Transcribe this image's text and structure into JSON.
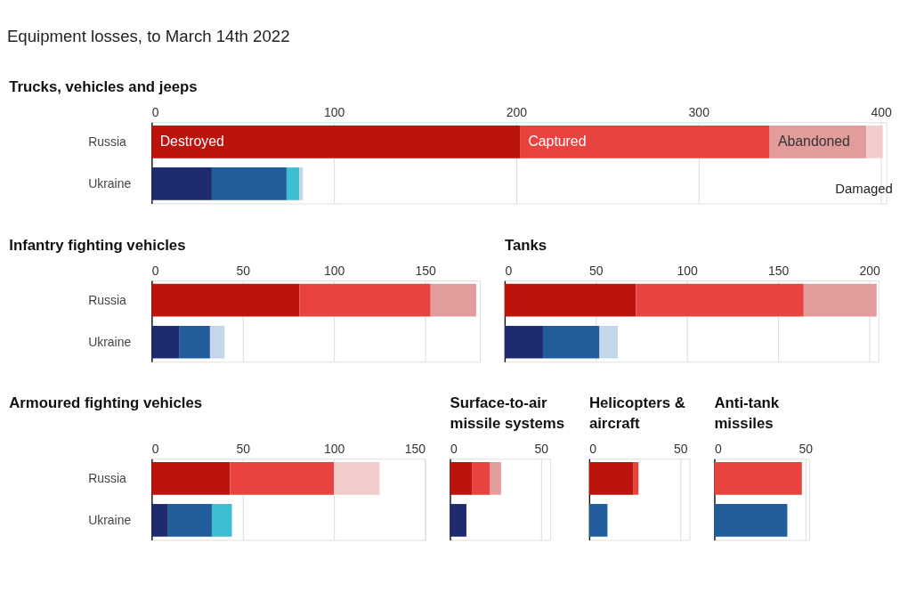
{
  "chart_data": [
    {
      "type": "bar",
      "orientation": "horizontal",
      "stacked": true,
      "title": "Trucks, vehicles and jeeps",
      "annotations": [
        "Equipment losses, to March 14th 2022"
      ],
      "categories": [
        "Russia",
        "Ukraine"
      ],
      "xlim": [
        0,
        403
      ],
      "xticks": [
        0,
        100,
        200,
        300,
        400
      ],
      "grid": "x",
      "series": [
        {
          "name": "Destroyed",
          "color": "#bd130d",
          "values": [
            202,
            null
          ]
        },
        {
          "name": "Captured",
          "color": "#e8433e",
          "values": [
            137,
            null
          ]
        },
        {
          "name": "Abandoned",
          "color": "#e29c9c",
          "values": [
            53,
            null
          ]
        },
        {
          "name": "Damaged",
          "color": "#f2cbcb",
          "values": [
            9,
            null
          ]
        },
        {
          "color": "#1f2b6f",
          "values": [
            null,
            33
          ]
        },
        {
          "color": "#205d9a",
          "values": [
            null,
            41
          ]
        },
        {
          "color": "#3ebdd1",
          "values": [
            null,
            7
          ]
        },
        {
          "color": "#c5d6e8",
          "values": [
            null,
            2
          ]
        }
      ]
    },
    {
      "type": "bar",
      "orientation": "horizontal",
      "stacked": true,
      "title": "Infantry fighting vehicles",
      "categories": [
        "Russia",
        "Ukraine"
      ],
      "xlim": [
        0,
        180
      ],
      "xticks": [
        0,
        50,
        100,
        150
      ],
      "grid": "x",
      "series": [
        {
          "color": "#bd130d",
          "values": [
            81,
            null
          ]
        },
        {
          "color": "#e8433e",
          "values": [
            72,
            null
          ]
        },
        {
          "color": "#e29c9c",
          "values": [
            25,
            null
          ]
        },
        {
          "color": "#1f2b6f",
          "values": [
            null,
            15
          ]
        },
        {
          "color": "#205d9a",
          "values": [
            null,
            17
          ]
        },
        {
          "color": "#c5d6e8",
          "values": [
            null,
            8
          ]
        }
      ]
    },
    {
      "type": "bar",
      "orientation": "horizontal",
      "stacked": true,
      "title": "Tanks",
      "categories": [
        "Russia",
        "Ukraine"
      ],
      "xlim": [
        0,
        205
      ],
      "xticks": [
        0,
        50,
        100,
        150,
        200
      ],
      "grid": "x",
      "tick_labels": "x",
      "series": [
        {
          "color": "#bd130d",
          "values": [
            72,
            null
          ]
        },
        {
          "color": "#e8433e",
          "values": [
            92,
            null
          ]
        },
        {
          "color": "#e29c9c",
          "values": [
            40,
            null
          ]
        },
        {
          "color": "#1f2b6f",
          "values": [
            null,
            21
          ]
        },
        {
          "color": "#205d9a",
          "values": [
            null,
            31
          ]
        },
        {
          "color": "#c5d6e8",
          "values": [
            null,
            10
          ]
        }
      ]
    },
    {
      "type": "bar",
      "orientation": "horizontal",
      "stacked": true,
      "title": "Armoured fighting vehicles",
      "categories": [
        "Russia",
        "Ukraine"
      ],
      "xlim": [
        0,
        150
      ],
      "xticks": [
        0,
        50,
        100,
        150
      ],
      "grid": "x",
      "series": [
        {
          "color": "#bd130d",
          "values": [
            43,
            null
          ]
        },
        {
          "color": "#e8433e",
          "values": [
            57,
            null
          ]
        },
        {
          "color": "#f2cbcb",
          "values": [
            25,
            null
          ]
        },
        {
          "color": "#1f2b6f",
          "values": [
            null,
            9
          ]
        },
        {
          "color": "#205d9a",
          "values": [
            null,
            24
          ]
        },
        {
          "color": "#3ebdd1",
          "values": [
            null,
            11
          ]
        }
      ]
    },
    {
      "type": "bar",
      "orientation": "horizontal",
      "stacked": true,
      "title": "Surface-to-air missile systems",
      "categories": [
        "Russia",
        "Ukraine"
      ],
      "xlim": [
        0,
        55
      ],
      "xticks": [
        0,
        50
      ],
      "grid": "x",
      "tick_labels": "x",
      "series": [
        {
          "color": "#bd130d",
          "values": [
            12,
            null
          ]
        },
        {
          "color": "#e8433e",
          "values": [
            10,
            null
          ]
        },
        {
          "color": "#e29c9c",
          "values": [
            6,
            null
          ]
        },
        {
          "color": "#1f2b6f",
          "values": [
            null,
            9
          ]
        }
      ]
    },
    {
      "type": "bar",
      "orientation": "horizontal",
      "stacked": true,
      "title": "Helicopters & aircraft",
      "categories": [
        "Russia",
        "Ukraine"
      ],
      "xlim": [
        0,
        55
      ],
      "xticks": [
        0,
        50
      ],
      "grid": "x",
      "tick_labels": "x",
      "series": [
        {
          "color": "#bd130d",
          "values": [
            24,
            null
          ]
        },
        {
          "color": "#e8433e",
          "values": [
            3,
            null
          ]
        },
        {
          "color": "#205d9a",
          "values": [
            null,
            10
          ]
        }
      ]
    },
    {
      "type": "bar",
      "orientation": "horizontal",
      "stacked": true,
      "title": "Anti-tank missiles",
      "categories": [
        "Russia",
        "Ukraine"
      ],
      "xlim": [
        0,
        52
      ],
      "xticks": [
        0,
        50
      ],
      "grid": "x",
      "tick_labels": "x",
      "series": [
        {
          "color": "#e8433e",
          "values": [
            48,
            null
          ]
        },
        {
          "color": "#205d9a",
          "values": [
            null,
            40
          ]
        }
      ]
    }
  ]
}
